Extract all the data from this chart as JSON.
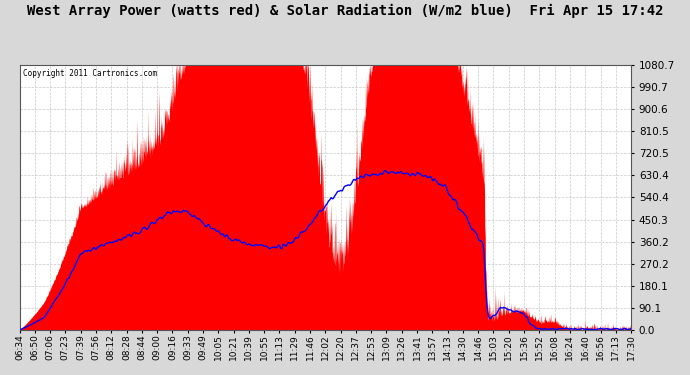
{
  "title": "West Array Power (watts red) & Solar Radiation (W/m2 blue)  Fri Apr 15 17:42",
  "copyright": "Copyright 2011 Cartronics.com",
  "ylim": [
    0.0,
    1080.7
  ],
  "yticks": [
    0.0,
    90.1,
    180.1,
    270.2,
    360.2,
    450.3,
    540.4,
    630.4,
    720.5,
    810.5,
    900.6,
    990.7,
    1080.7
  ],
  "xtick_labels": [
    "06:34",
    "06:50",
    "07:06",
    "07:23",
    "07:39",
    "07:56",
    "08:12",
    "08:28",
    "08:44",
    "09:00",
    "09:16",
    "09:33",
    "09:49",
    "10:05",
    "10:21",
    "10:39",
    "10:55",
    "11:13",
    "11:29",
    "11:46",
    "12:02",
    "12:20",
    "12:37",
    "12:53",
    "13:09",
    "13:26",
    "13:41",
    "13:57",
    "14:13",
    "14:30",
    "14:46",
    "15:03",
    "15:20",
    "15:36",
    "15:52",
    "16:08",
    "16:24",
    "16:40",
    "16:56",
    "17:13",
    "17:30"
  ],
  "plot_bg_color": "#ffffff",
  "fig_bg_color": "#d8d8d8",
  "fill_color": "#ff0000",
  "line_color": "#0000ff",
  "grid_color": "#bbbbbb",
  "title_fontsize": 10,
  "tick_fontsize": 6.5,
  "ytick_fontsize": 7.5
}
